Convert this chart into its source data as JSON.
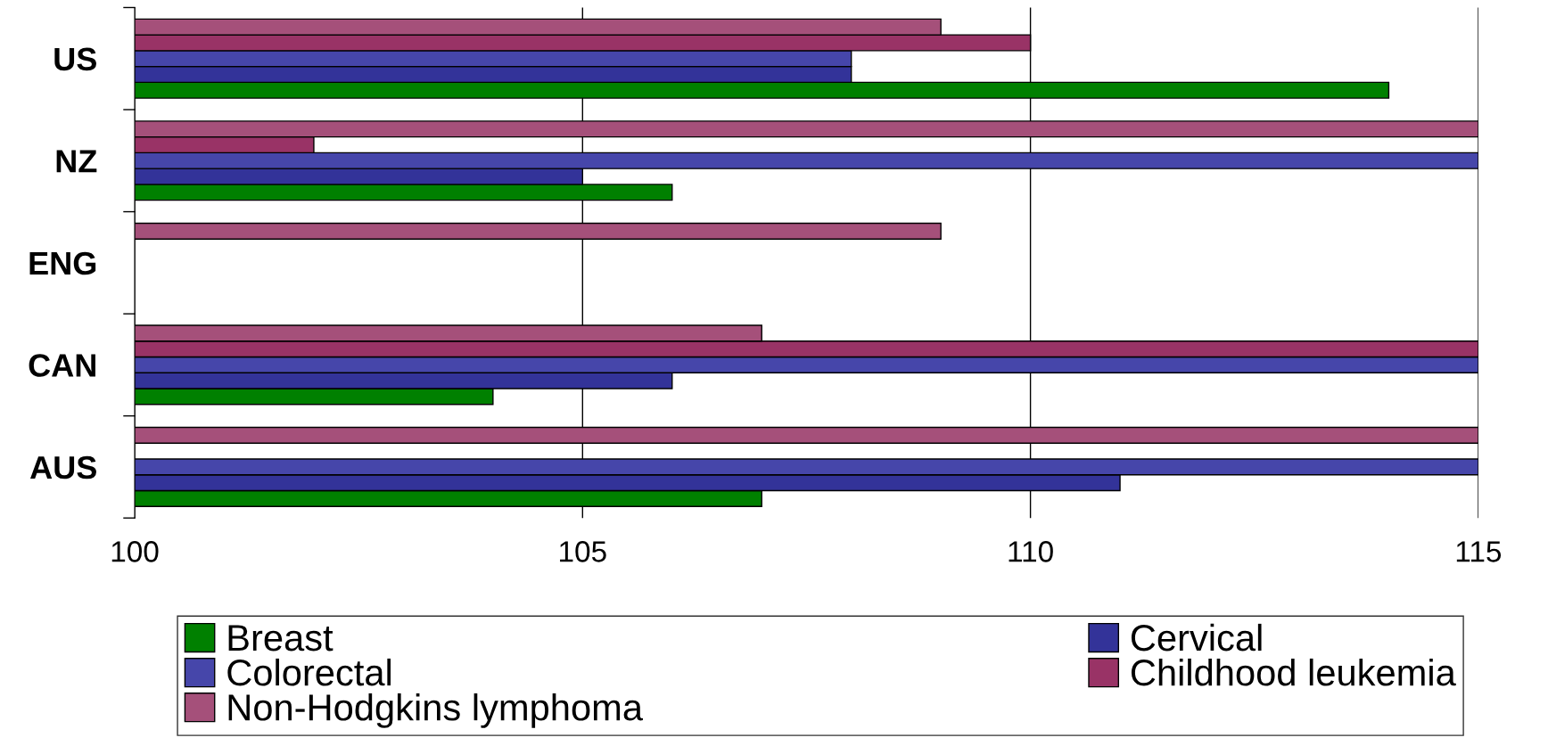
{
  "chart_data": {
    "type": "bar",
    "orientation": "horizontal",
    "categories": [
      "US",
      "NZ",
      "ENG",
      "CAN",
      "AUS"
    ],
    "series": [
      {
        "name": "Breast",
        "color": "#008000",
        "values": [
          114,
          106,
          null,
          104,
          107
        ]
      },
      {
        "name": "Cervical",
        "color": "#333399",
        "values": [
          108,
          105,
          null,
          106,
          111
        ]
      },
      {
        "name": "Colorectal",
        "color": "#4646aa",
        "values": [
          108,
          115,
          null,
          115,
          115
        ]
      },
      {
        "name": "Childhood leukemia",
        "color": "#993366",
        "values": [
          110,
          102,
          null,
          115,
          null
        ]
      },
      {
        "name": "Non-Hodgkins lymphoma",
        "color": "#a5507a",
        "values": [
          109,
          115,
          109,
          107,
          115
        ]
      }
    ],
    "xlim": [
      100,
      115
    ],
    "xticks": [
      100,
      105,
      110,
      115
    ],
    "grid": "x",
    "legend": "bottom"
  }
}
